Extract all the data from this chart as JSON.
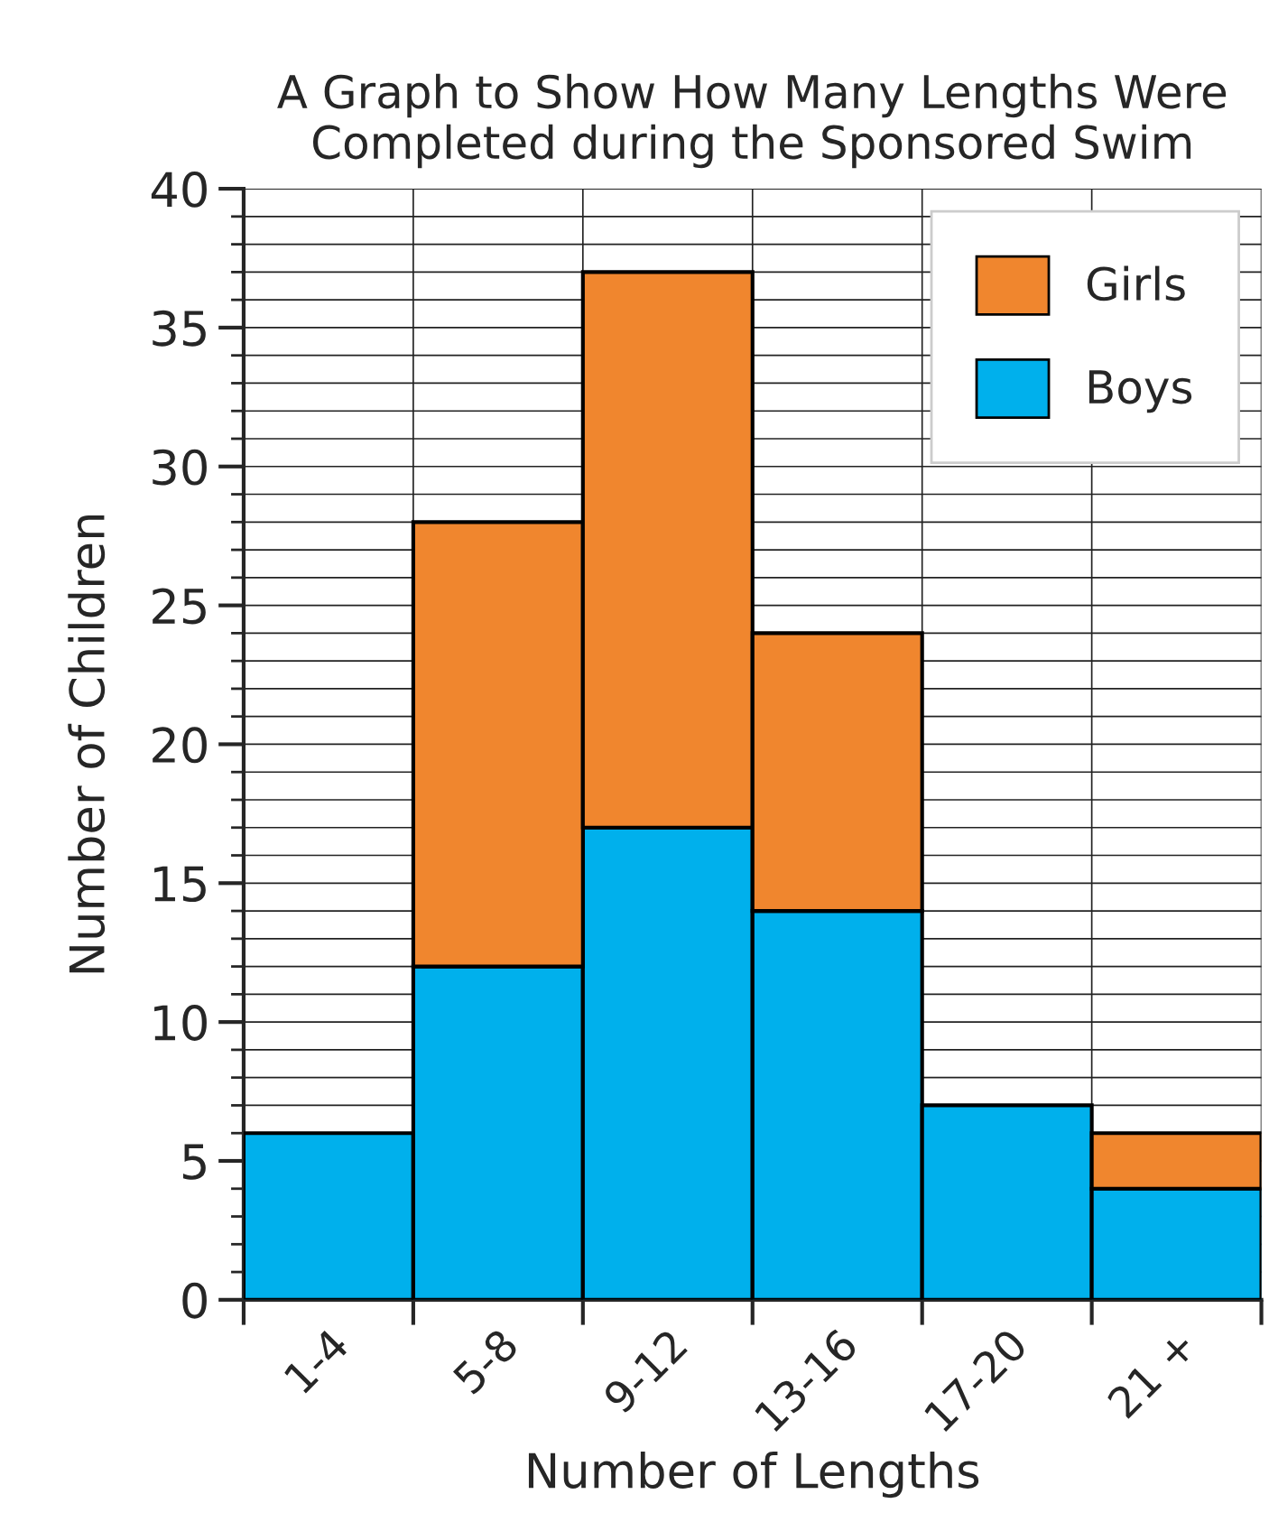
{
  "chart_data": {
    "type": "bar",
    "title": "A Graph to Show How Many Lengths Were\nCompleted during the Sponsored Swim",
    "xlabel": "Number of Lengths",
    "ylabel": "Number of Children",
    "categories": [
      "1-4",
      "5-8",
      "9-12",
      "13-16",
      "17-20",
      "21 +"
    ],
    "stacked": true,
    "series": [
      {
        "name": "Boys",
        "color": "#00b0ec",
        "values": [
          6,
          12,
          17,
          14,
          7,
          4
        ]
      },
      {
        "name": "Girls",
        "color": "#f0862e",
        "values": [
          null,
          16,
          20,
          10,
          null,
          2
        ]
      }
    ],
    "ylim": [
      0,
      40
    ],
    "yticks": [
      0,
      5,
      10,
      15,
      20,
      25,
      30,
      35,
      40
    ],
    "grid": true,
    "legend": "top right"
  }
}
